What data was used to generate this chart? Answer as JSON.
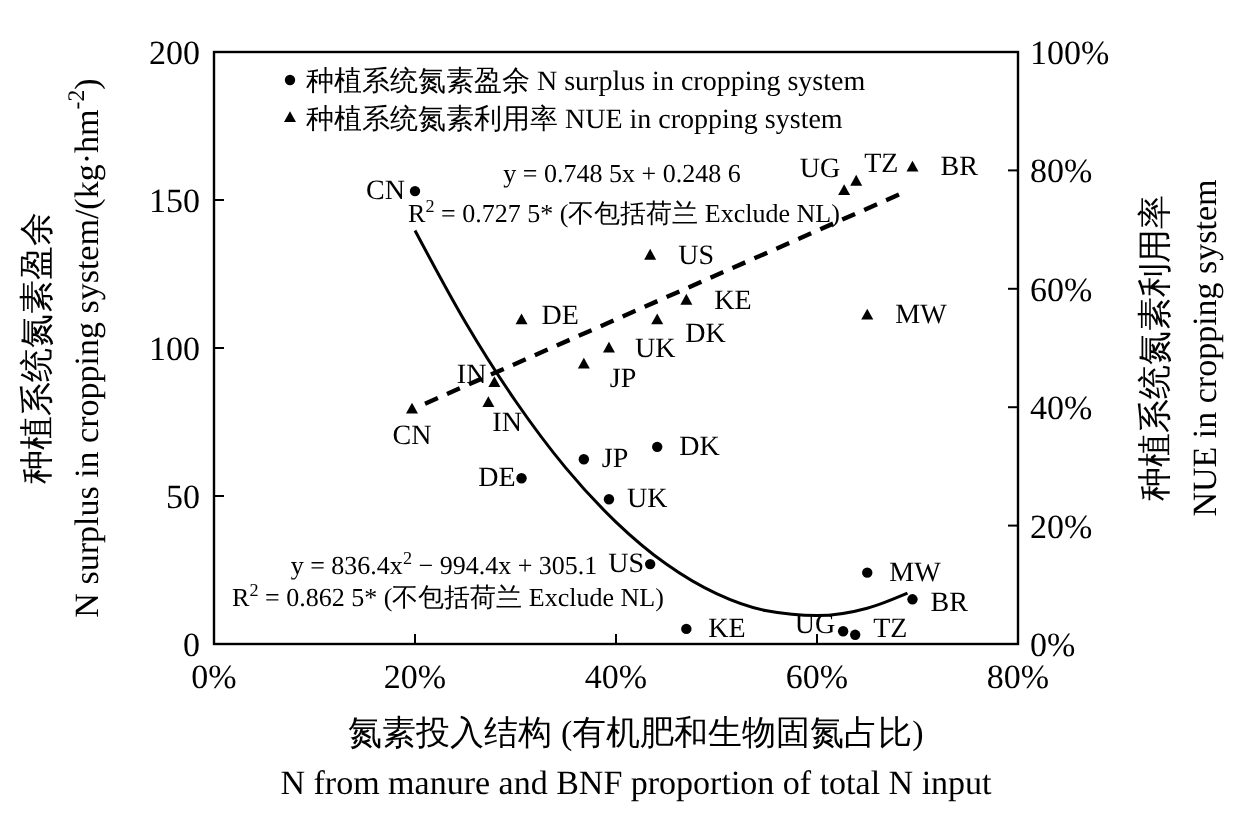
{
  "chart_data": {
    "type": "scatter",
    "xlabel": "氮素投入结构 (有机肥和生物固氮占比)\nN from manure and BNF proportion of total N input",
    "ylabel": "种植系统氮素盈余\nN surplus in cropping system/(kg·hm$^{-2}$)",
    "y2label": "种植系统氮素利用率\nNUE in cropping system",
    "xlim": [
      0,
      80
    ],
    "xticks": [
      {
        "value": 0,
        "label": "0%"
      },
      {
        "value": 20,
        "label": "20%"
      },
      {
        "value": 40,
        "label": "40%"
      },
      {
        "value": 60,
        "label": "60%"
      },
      {
        "value": 80,
        "label": "80%"
      }
    ],
    "ylim": [
      0,
      200
    ],
    "yticks": [
      0,
      50,
      100,
      150,
      200
    ],
    "y2lim": [
      0,
      100
    ],
    "y2ticks": [
      {
        "value": 0,
        "label": "0%"
      },
      {
        "value": 20,
        "label": "20%"
      },
      {
        "value": 40,
        "label": "40%"
      },
      {
        "value": 60,
        "label": "60%"
      },
      {
        "value": 80,
        "label": "80%"
      },
      {
        "value": 100,
        "label": "100%"
      }
    ],
    "grid": false,
    "legend": "top left",
    "series": [
      {
        "name": "种植系统氮素盈余 N surplus in cropping system",
        "color": "#000000",
        "marker": "circle",
        "x": [
          20,
          30.6,
          36.8,
          39.3,
          44.1,
          43.4,
          47,
          62.6,
          63.8,
          65,
          69.5
        ],
        "values": [
          153,
          56,
          62.4,
          48.9,
          66.6,
          27,
          5.1,
          4.3,
          3.1,
          24.1,
          15.1
        ]
      },
      {
        "name": "种植系统氮素利用率 NUE in cropping system",
        "color": "#000000",
        "marker": "triangle",
        "axis": "y2",
        "x": [
          19.7,
          27.9,
          27.3,
          30.6,
          36.8,
          39.3,
          44.1,
          43.4,
          47,
          65,
          62.7,
          63.9,
          69.5
        ],
        "values": [
          39.6,
          44.1,
          40.7,
          54.7,
          47.2,
          49.9,
          54.7,
          65.6,
          58,
          55.5,
          76.5,
          78.1,
          80.5
        ]
      },
      {
        "type": "line",
        "color": "#000000",
        "marker": "none",
        "line_style": "solid",
        "x": [
          20,
          25,
          30,
          35,
          40,
          45,
          50,
          55,
          60,
          65,
          69
        ],
        "values": [
          139.7,
          108.8,
          82.1,
          59.5,
          41.2,
          27,
          17,
          11.2,
          9.6,
          12.1,
          17.2
        ]
      },
      {
        "type": "line",
        "color": "#000000",
        "marker": "none",
        "line_style": "dashed",
        "axis": "y2",
        "x": [
          21,
          68.8
        ],
        "values": [
          40.6,
          76.4
        ]
      }
    ],
    "annotations": [
      "y = 0.748 5x + 0.248 6",
      "R$^{2}$ = 0.727 5* (不包括荷兰 Exclude NL)",
      "y = 836.4x$^{2}$ − 994.4x + 305.1",
      "R$^{2}$ = 0.862 5* (不包括荷兰 Exclude NL)",
      {
        "text": "CN",
        "x": 20,
        "y": 153
      },
      {
        "text": "DE",
        "x": 30.6,
        "y": 56
      },
      {
        "text": "JP",
        "x": 36.8,
        "y": 62.4
      },
      {
        "text": "UK",
        "x": 39.3,
        "y": 48.9
      },
      {
        "text": "DK",
        "x": 44.1,
        "y": 66.6
      },
      {
        "text": "US",
        "x": 43.4,
        "y": 27
      },
      {
        "text": "KE",
        "x": 47,
        "y": 5.1
      },
      {
        "text": "UG",
        "x": 62.6,
        "y": 4.3
      },
      {
        "text": "TZ",
        "x": 63.8,
        "y": 3.1
      },
      {
        "text": "MW",
        "x": 65,
        "y": 24.1
      },
      {
        "text": "BR",
        "x": 69.5,
        "y": 15.1
      },
      {
        "text": "CN",
        "x": 19.7,
        "y": 79.2
      },
      {
        "text": "IN",
        "x": 27.9,
        "y": 88.2
      },
      {
        "text": "IN",
        "x": 27.3,
        "y": 81.4
      },
      {
        "text": "DE",
        "x": 30.6,
        "y": 109.4
      },
      {
        "text": "JP",
        "x": 36.8,
        "y": 94.4
      },
      {
        "text": "UK",
        "x": 39.3,
        "y": 99.8
      },
      {
        "text": "DK",
        "x": 44.1,
        "y": 109.4
      },
      {
        "text": "US",
        "x": 43.4,
        "y": 131.2
      },
      {
        "text": "KE",
        "x": 47,
        "y": 116
      },
      {
        "text": "MW",
        "x": 65,
        "y": 111
      },
      {
        "text": "UG",
        "x": 62.7,
        "y": 153
      },
      {
        "text": "TZ",
        "x": 63.9,
        "y": 156.2
      },
      {
        "text": "BR",
        "x": 69.5,
        "y": 161
      }
    ]
  }
}
